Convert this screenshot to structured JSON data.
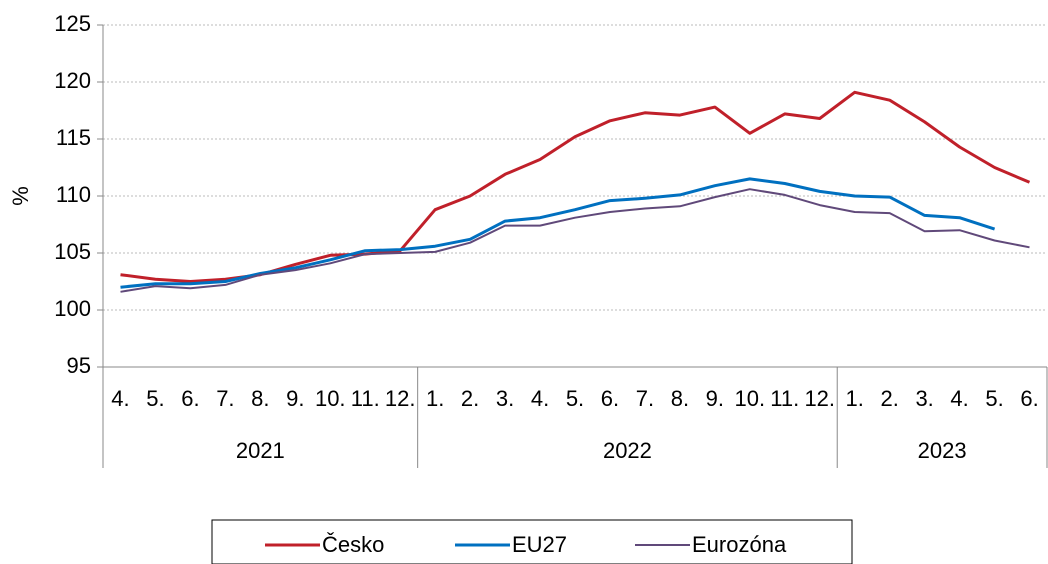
{
  "chart_data": {
    "type": "line",
    "ylabel": "%",
    "category_groups": [
      {
        "label": "2021",
        "categories": [
          "4.",
          "5.",
          "6.",
          "7.",
          "8.",
          "9.",
          "10.",
          "11.",
          "12."
        ]
      },
      {
        "label": "2022",
        "categories": [
          "1.",
          "2.",
          "3.",
          "4.",
          "5.",
          "6.",
          "7.",
          "8.",
          "9.",
          "10.",
          "11.",
          "12."
        ]
      },
      {
        "label": "2023",
        "categories": [
          "1.",
          "2.",
          "3.",
          "4.",
          "5.",
          "6."
        ]
      }
    ],
    "series": [
      {
        "name": "Česko",
        "color": "#c0202a",
        "width": 3,
        "values": [
          103.1,
          102.7,
          102.5,
          102.7,
          103.1,
          104.0,
          104.8,
          104.9,
          105.2,
          108.8,
          110.0,
          111.9,
          113.2,
          115.2,
          116.6,
          117.3,
          117.1,
          117.8,
          115.5,
          117.2,
          116.8,
          119.1,
          118.4,
          116.5,
          114.3,
          112.5,
          111.2
        ]
      },
      {
        "name": "EU27",
        "color": "#0070c0",
        "width": 3,
        "values": [
          102.0,
          102.3,
          102.3,
          102.5,
          103.2,
          103.7,
          104.4,
          105.2,
          105.3,
          105.6,
          106.2,
          107.8,
          108.1,
          108.8,
          109.6,
          109.8,
          110.1,
          110.9,
          111.5,
          111.1,
          110.4,
          110.0,
          109.9,
          108.3,
          108.1,
          107.1,
          null
        ]
      },
      {
        "name": "Eurozóna",
        "color": "#60497a",
        "width": 2,
        "values": [
          101.6,
          102.1,
          101.9,
          102.2,
          103.1,
          103.5,
          104.1,
          104.9,
          105.0,
          105.1,
          105.9,
          107.4,
          107.4,
          108.1,
          108.6,
          108.9,
          109.1,
          109.9,
          110.6,
          110.1,
          109.2,
          108.6,
          108.5,
          106.9,
          107.0,
          106.1,
          105.5
        ]
      }
    ],
    "ylim": [
      95,
      125
    ],
    "yticks": [
      95,
      100,
      105,
      110,
      115,
      120,
      125
    ],
    "grid": true
  }
}
